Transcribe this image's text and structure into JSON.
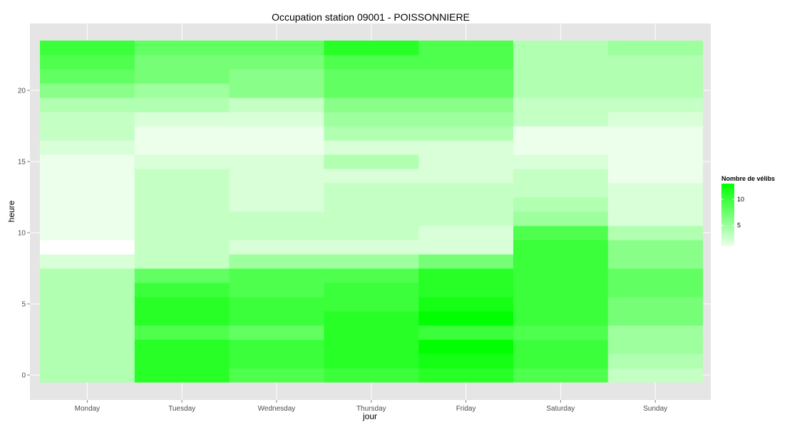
{
  "chart_data": {
    "type": "heatmap",
    "title": "Occupation station 09001 - POISSONNIERE",
    "xlabel": "jour",
    "ylabel": "heure",
    "x_categories": [
      "Monday",
      "Tuesday",
      "Wednesday",
      "Thursday",
      "Friday",
      "Saturday",
      "Sunday"
    ],
    "y_ticks": [
      "0",
      "5",
      "10",
      "15",
      "20"
    ],
    "y_range": [
      0,
      23
    ],
    "color_range": [
      0,
      13
    ],
    "low_color": "#ffffff",
    "high_color": "#00ff00",
    "panel_background": "#e5e5e5",
    "grid": true,
    "legend": {
      "title": "Nombre de vélibs",
      "ticks": [
        "5",
        "10"
      ],
      "placement": "right"
    },
    "series": [
      {
        "x": "Monday",
        "hours": [
          4,
          4,
          4,
          4,
          4,
          4,
          4,
          4,
          2,
          0,
          1,
          1,
          1,
          1,
          1,
          1,
          2,
          3,
          3,
          4,
          6,
          8,
          9,
          10
        ]
      },
      {
        "x": "Tuesday",
        "hours": [
          11,
          11,
          11,
          9,
          11,
          11,
          10,
          8,
          3,
          3,
          3,
          3,
          3,
          3,
          3,
          2,
          1,
          1,
          2,
          4,
          5,
          7,
          7,
          8
        ]
      },
      {
        "x": "Wednesday",
        "hours": [
          9,
          10,
          10,
          8,
          10,
          10,
          9,
          9,
          5,
          2,
          3,
          3,
          2,
          2,
          2,
          2,
          1,
          1,
          2,
          3,
          6,
          6,
          7,
          8
        ]
      },
      {
        "x": "Thursday",
        "hours": [
          10,
          11,
          11,
          11,
          11,
          10,
          10,
          9,
          5,
          2,
          3,
          3,
          3,
          3,
          2,
          4,
          2,
          4,
          5,
          6,
          8,
          8,
          9,
          11
        ]
      },
      {
        "x": "Friday",
        "hours": [
          11,
          12,
          13,
          10,
          13,
          12,
          11,
          11,
          7,
          2,
          2,
          3,
          3,
          3,
          2,
          2,
          2,
          4,
          5,
          6,
          8,
          8,
          9,
          9
        ]
      },
      {
        "x": "Saturday",
        "hours": [
          9,
          10,
          10,
          9,
          10,
          10,
          10,
          10,
          10,
          10,
          9,
          5,
          4,
          3,
          3,
          2,
          1,
          1,
          3,
          3,
          4,
          4,
          4,
          4
        ]
      },
      {
        "x": "Sunday",
        "hours": [
          3,
          4,
          5,
          5,
          7,
          7,
          8,
          8,
          6,
          6,
          4,
          2,
          2,
          2,
          1,
          1,
          1,
          1,
          2,
          3,
          4,
          4,
          4,
          5
        ]
      }
    ]
  }
}
